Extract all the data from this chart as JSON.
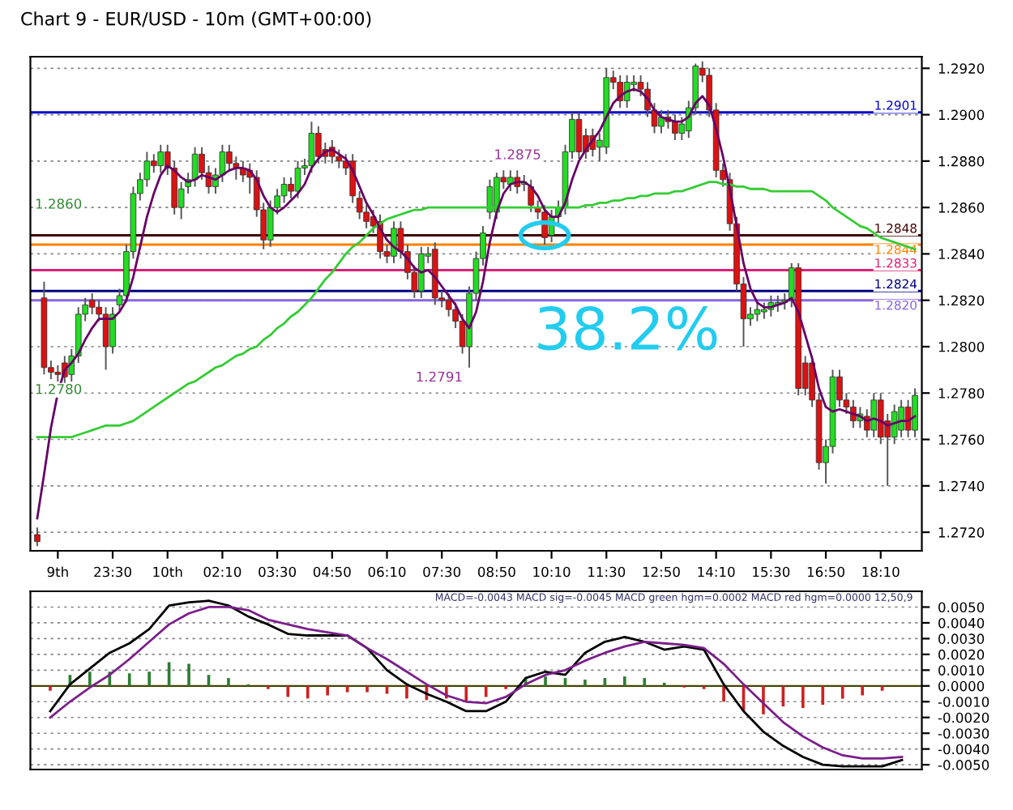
{
  "chart_data": [
    {
      "type": "candlestick",
      "title": "Chart 9 - EUR/USD - 10m (GMT+00:00)",
      "categories": [
        null,
        null,
        null,
        "9th",
        null,
        null,
        null,
        null,
        null,
        null,
        null,
        "23:30",
        null,
        null,
        null,
        null,
        null,
        null,
        null,
        "10th",
        null,
        null,
        null,
        null,
        null,
        null,
        null,
        "02:10",
        null,
        null,
        null,
        null,
        null,
        null,
        null,
        "03:30",
        null,
        null,
        null,
        null,
        null,
        null,
        null,
        "04:50",
        null,
        null,
        null,
        null,
        null,
        null,
        null,
        "06:10",
        null,
        null,
        null,
        null,
        null,
        null,
        null,
        "07:30",
        null,
        null,
        null,
        null,
        null,
        null,
        null,
        "08:50",
        null,
        null,
        null,
        null,
        null,
        null,
        null,
        "10:10",
        null,
        null,
        null,
        null,
        null,
        null,
        null,
        "11:30",
        null,
        null,
        null,
        null,
        null,
        null,
        null,
        "12:50",
        null,
        null,
        null,
        null,
        null,
        null,
        null,
        "14:10",
        null,
        null,
        null,
        null,
        null,
        null,
        null,
        "15:30",
        null,
        null,
        null,
        null,
        null,
        null,
        null,
        "16:50",
        null,
        null,
        null,
        null,
        null,
        null,
        null,
        "18:10",
        null,
        null,
        null,
        null,
        null
      ],
      "colors": [
        "#dd1111",
        "#dd1111",
        "#dd1111",
        "#dd1111",
        "#dd1111",
        "#22dd22",
        "#22dd22",
        "#22dd22",
        "#dd1111",
        "#dd1111",
        "#dd1111",
        "#22dd22",
        "#22dd22",
        "#22dd22",
        "#22dd22",
        "#22dd22",
        "#22dd22",
        "#dd1111",
        "#22dd22",
        "#dd1111",
        "#dd1111",
        "#22dd22",
        "#22dd22",
        "#22dd22",
        "#dd1111",
        "#dd1111",
        "#22dd22",
        "#22dd22",
        "#dd1111",
        "#dd1111",
        "#dd1111",
        "#dd1111",
        "#dd1111",
        "#dd1111",
        "#22dd22",
        "#22dd22",
        "#22dd22",
        "#dd1111",
        "#22dd22",
        "#22dd22",
        "#22dd22",
        "#dd1111",
        "#dd1111",
        "#dd1111",
        "#dd1111",
        "#dd1111",
        "#dd1111",
        "#dd1111",
        "#dd1111",
        "#dd1111",
        "#dd1111",
        "#dd1111",
        "#22dd22",
        "#dd1111",
        "#dd1111",
        "#dd1111",
        "#22dd22",
        "#22dd22",
        "#dd1111",
        "#dd1111",
        "#dd1111",
        "#dd1111",
        "#dd1111",
        "#22dd22",
        "#22dd22",
        "#22dd22",
        "#22dd22",
        "#22dd22",
        "#dd1111",
        "#22dd22",
        "#dd1111",
        "#22dd22",
        "#dd1111",
        "#dd1111",
        "#dd1111",
        "#22dd22",
        "#22dd22",
        "#22dd22",
        "#22dd22",
        "#dd1111",
        "#dd1111",
        "#dd1111",
        "#22dd22",
        "#22dd22",
        "#dd1111",
        "#dd1111",
        "#22dd22",
        "#22dd22",
        "#dd1111",
        "#dd1111",
        "#dd1111",
        "#22dd22",
        "#dd1111",
        "#dd1111",
        "#22dd22",
        "#22dd22",
        "#22dd22",
        "#dd1111",
        "#dd1111",
        "#dd1111",
        "#dd1111",
        "#dd1111",
        "#dd1111",
        "#dd1111",
        "#22dd22",
        "#22dd22",
        "#22dd22",
        "#22dd22",
        "#22dd22",
        "#22dd22",
        "#22dd22",
        "#dd1111",
        "#dd1111",
        "#dd1111",
        "#dd1111",
        "#22dd22",
        "#22dd22",
        "#dd1111",
        "#dd1111",
        "#dd1111",
        "#22dd22",
        "#dd1111",
        "#22dd22",
        "#dd1111",
        "#dd1111",
        "#22dd22",
        "#22dd22",
        "#dd1111",
        "#22dd22"
      ],
      "ohlc": [
        [
          1.2719,
          1.2722,
          1.2714,
          1.2716
        ],
        [
          1.2821,
          1.2828,
          1.2788,
          1.2791
        ],
        [
          1.2791,
          1.2794,
          1.2786,
          1.2789
        ],
        [
          1.2789,
          1.2792,
          1.2785,
          1.2788
        ],
        [
          1.2793,
          1.2796,
          1.2784,
          1.2787
        ],
        [
          1.2788,
          1.2799,
          1.2785,
          1.2796
        ],
        [
          1.2796,
          1.2817,
          1.2793,
          1.2814
        ],
        [
          1.2814,
          1.2821,
          1.2811,
          1.2818
        ],
        [
          1.282,
          1.2823,
          1.2814,
          1.2817
        ],
        [
          1.2817,
          1.282,
          1.2811,
          1.2814
        ],
        [
          1.2814,
          1.2817,
          1.279,
          1.28
        ],
        [
          1.28,
          1.2817,
          1.2797,
          1.2814
        ],
        [
          1.2818,
          1.2825,
          1.2815,
          1.2822
        ],
        [
          1.2822,
          1.2844,
          1.2819,
          1.2841
        ],
        [
          1.2841,
          1.2869,
          1.2838,
          1.2866
        ],
        [
          1.2866,
          1.2875,
          1.2863,
          1.2872
        ],
        [
          1.2872,
          1.2884,
          1.2869,
          1.288
        ],
        [
          1.288,
          1.2883,
          1.2875,
          1.2878
        ],
        [
          1.2878,
          1.2887,
          1.2875,
          1.2884
        ],
        [
          1.2884,
          1.2887,
          1.2874,
          1.2877
        ],
        [
          1.2877,
          1.288,
          1.2857,
          1.286
        ],
        [
          1.286,
          1.2871,
          1.2855,
          1.2868
        ],
        [
          1.2869,
          1.2875,
          1.2866,
          1.2872
        ],
        [
          1.2872,
          1.2886,
          1.2869,
          1.2883
        ],
        [
          1.2883,
          1.2886,
          1.2872,
          1.2875
        ],
        [
          1.2875,
          1.2878,
          1.2866,
          1.2869
        ],
        [
          1.2869,
          1.2877,
          1.2866,
          1.2874
        ],
        [
          1.2874,
          1.2887,
          1.2871,
          1.2884
        ],
        [
          1.2884,
          1.2887,
          1.2876,
          1.2879
        ],
        [
          1.2879,
          1.2882,
          1.2872,
          1.2877
        ],
        [
          1.2877,
          1.288,
          1.2871,
          1.2874
        ],
        [
          1.2876,
          1.2879,
          1.2866,
          1.2873
        ],
        [
          1.2873,
          1.2876,
          1.2856,
          1.2859
        ],
        [
          1.2859,
          1.2862,
          1.2842,
          1.2846
        ],
        [
          1.2846,
          1.2863,
          1.2843,
          1.286
        ],
        [
          1.286,
          1.2868,
          1.2857,
          1.2865
        ],
        [
          1.2865,
          1.2873,
          1.2862,
          1.287
        ],
        [
          1.287,
          1.2873,
          1.2864,
          1.2867
        ],
        [
          1.2867,
          1.288,
          1.2864,
          1.2877
        ],
        [
          1.2877,
          1.2881,
          1.2874,
          1.2878
        ],
        [
          1.2878,
          1.2897,
          1.2875,
          1.2892
        ],
        [
          1.2892,
          1.2895,
          1.2879,
          1.2882
        ],
        [
          1.2885,
          1.2888,
          1.2879,
          1.2882
        ],
        [
          1.2886,
          1.2889,
          1.2879,
          1.2882
        ],
        [
          1.2882,
          1.2885,
          1.2877,
          1.288
        ],
        [
          1.288,
          1.2883,
          1.2874,
          1.2877
        ],
        [
          1.288,
          1.2883,
          1.2862,
          1.2865
        ],
        [
          1.2864,
          1.2867,
          1.2855,
          1.2858
        ],
        [
          1.2858,
          1.2861,
          1.2851,
          1.2854
        ],
        [
          1.2856,
          1.2859,
          1.2849,
          1.2852
        ],
        [
          1.2854,
          1.2857,
          1.2838,
          1.2841
        ],
        [
          1.2841,
          1.2844,
          1.2836,
          1.2839
        ],
        [
          1.2839,
          1.2854,
          1.2836,
          1.2851
        ],
        [
          1.2851,
          1.2854,
          1.2838,
          1.2841
        ],
        [
          1.2841,
          1.2844,
          1.2829,
          1.2832
        ],
        [
          1.2832,
          1.2835,
          1.2821,
          1.2824
        ],
        [
          1.2824,
          1.2843,
          1.2821,
          1.284
        ],
        [
          1.2839,
          1.2843,
          1.2836,
          1.284
        ],
        [
          1.2842,
          1.2845,
          1.2818,
          1.2821
        ],
        [
          1.2821,
          1.2824,
          1.2817,
          1.282
        ],
        [
          1.282,
          1.2823,
          1.2813,
          1.2816
        ],
        [
          1.2816,
          1.2819,
          1.2808,
          1.2811
        ],
        [
          1.2811,
          1.2814,
          1.2797,
          1.28
        ],
        [
          1.28,
          1.2826,
          1.2791,
          1.2823
        ],
        [
          1.2823,
          1.2841,
          1.282,
          1.2838
        ],
        [
          1.2838,
          1.2852,
          1.2835,
          1.2849
        ],
        [
          1.2858,
          1.2872,
          1.2855,
          1.2869
        ],
        [
          1.2858,
          1.2875,
          1.2855,
          1.2873
        ],
        [
          1.2873,
          1.2876,
          1.2868,
          1.2871
        ],
        [
          1.287,
          1.2876,
          1.2867,
          1.2873
        ],
        [
          1.2873,
          1.2876,
          1.2866,
          1.2869
        ],
        [
          1.287,
          1.2874,
          1.2867,
          1.2871
        ],
        [
          1.2869,
          1.2872,
          1.2858,
          1.2861
        ],
        [
          1.286,
          1.2863,
          1.2855,
          1.2858
        ],
        [
          1.2858,
          1.2861,
          1.2844,
          1.2847
        ],
        [
          1.2848,
          1.2859,
          1.2845,
          1.2856
        ],
        [
          1.2856,
          1.2863,
          1.2853,
          1.286
        ],
        [
          1.286,
          1.2887,
          1.2857,
          1.2884
        ],
        [
          1.2884,
          1.2901,
          1.2881,
          1.2898
        ],
        [
          1.2898,
          1.2901,
          1.2881,
          1.2884
        ],
        [
          1.2891,
          1.2894,
          1.2881,
          1.2884
        ],
        [
          1.2891,
          1.2894,
          1.2882,
          1.2885
        ],
        [
          1.2886,
          1.2892,
          1.288,
          1.2889
        ],
        [
          1.2886,
          1.292,
          1.2883,
          1.2916
        ],
        [
          1.2916,
          1.2919,
          1.2911,
          1.2914
        ],
        [
          1.2914,
          1.2917,
          1.2903,
          1.2906
        ],
        [
          1.2906,
          1.2917,
          1.2903,
          1.2914
        ],
        [
          1.2913,
          1.2917,
          1.291,
          1.2914
        ],
        [
          1.2914,
          1.2917,
          1.2908,
          1.2911
        ],
        [
          1.2911,
          1.2914,
          1.2899,
          1.2902
        ],
        [
          1.2902,
          1.2905,
          1.2892,
          1.2895
        ],
        [
          1.2895,
          1.2902,
          1.2892,
          1.2899
        ],
        [
          1.2899,
          1.2902,
          1.2894,
          1.2897
        ],
        [
          1.2897,
          1.29,
          1.2889,
          1.2892
        ],
        [
          1.2892,
          1.2899,
          1.2889,
          1.2896
        ],
        [
          1.2893,
          1.2906,
          1.289,
          1.2903
        ],
        [
          1.2903,
          1.2922,
          1.29,
          1.2921
        ],
        [
          1.292,
          1.2923,
          1.2914,
          1.2917
        ],
        [
          1.2917,
          1.292,
          1.2899,
          1.2902
        ],
        [
          1.2902,
          1.2905,
          1.2873,
          1.2876
        ],
        [
          1.2876,
          1.2879,
          1.2869,
          1.2872
        ],
        [
          1.2872,
          1.2875,
          1.285,
          1.2853
        ],
        [
          1.2853,
          1.2856,
          1.2824,
          1.2827
        ],
        [
          1.2827,
          1.283,
          1.28,
          1.2812
        ],
        [
          1.2812,
          1.2817,
          1.2809,
          1.2814
        ],
        [
          1.2814,
          1.2819,
          1.2811,
          1.2816
        ],
        [
          1.2815,
          1.2819,
          1.2812,
          1.2816
        ],
        [
          1.2816,
          1.2822,
          1.2813,
          1.2819
        ],
        [
          1.2818,
          1.2822,
          1.2815,
          1.2819
        ],
        [
          1.2819,
          1.2823,
          1.2816,
          1.282
        ],
        [
          1.282,
          1.2836,
          1.2817,
          1.2834
        ],
        [
          1.2834,
          1.2836,
          1.2779,
          1.2782
        ],
        [
          1.2793,
          1.2796,
          1.2779,
          1.2782
        ],
        [
          1.2793,
          1.2796,
          1.2774,
          1.2777
        ],
        [
          1.2777,
          1.278,
          1.2747,
          1.275
        ],
        [
          1.275,
          1.276,
          1.2741,
          1.2757
        ],
        [
          1.2757,
          1.279,
          1.2754,
          1.2787
        ],
        [
          1.2787,
          1.279,
          1.2774,
          1.2777
        ],
        [
          1.2777,
          1.278,
          1.2771,
          1.2774
        ],
        [
          1.2774,
          1.2777,
          1.2765,
          1.2768
        ],
        [
          1.2768,
          1.2774,
          1.2765,
          1.2771
        ],
        [
          1.277,
          1.2773,
          1.2761,
          1.2764
        ],
        [
          1.2764,
          1.278,
          1.2761,
          1.2777
        ],
        [
          1.2777,
          1.278,
          1.2758,
          1.2761
        ],
        [
          1.2768,
          1.2771,
          1.274,
          1.2761
        ],
        [
          1.2761,
          1.2775,
          1.2758,
          1.2772
        ],
        [
          1.2764,
          1.2777,
          1.2761,
          1.2774
        ],
        [
          1.2774,
          1.2777,
          1.2761,
          1.2764
        ],
        [
          1.2764,
          1.2782,
          1.2761,
          1.2779
        ]
      ],
      "series": [
        {
          "type": "line",
          "color": "#33cc33",
          "values": [
            1.2761,
            1.2761,
            1.2761,
            1.2761,
            1.2761,
            1.2761,
            1.2762,
            1.2763,
            1.2764,
            1.2765,
            1.2766,
            1.2766,
            1.2766,
            1.2767,
            1.2768,
            1.277,
            1.2772,
            1.2774,
            1.2776,
            1.2778,
            1.278,
            1.2782,
            1.2784,
            1.2785,
            1.2787,
            1.2789,
            1.2791,
            1.2792,
            1.2794,
            1.2796,
            1.2797,
            1.2799,
            1.28,
            1.2803,
            1.2805,
            1.2808,
            1.281,
            1.2813,
            1.2815,
            1.2818,
            1.2821,
            1.2825,
            1.2829,
            1.2832,
            1.2836,
            1.284,
            1.2843,
            1.2845,
            1.2848,
            1.2851,
            1.2853,
            1.2855,
            1.2856,
            1.2857,
            1.2858,
            1.2859,
            1.2859,
            1.286,
            1.286,
            1.286,
            1.286,
            1.286,
            1.286,
            1.286,
            1.286,
            1.286,
            1.286,
            1.286,
            1.286,
            1.286,
            1.286,
            1.286,
            1.286,
            1.286,
            1.286,
            1.286,
            1.286,
            1.286,
            1.286,
            1.286,
            1.2861,
            1.2861,
            1.2862,
            1.2862,
            1.2863,
            1.2863,
            1.2864,
            1.2864,
            1.2865,
            1.2865,
            1.2866,
            1.2866,
            1.2866,
            1.2867,
            1.2867,
            1.2868,
            1.2869,
            1.287,
            1.2871,
            1.2871,
            1.287,
            1.287,
            1.2869,
            1.2869,
            1.2868,
            1.2868,
            1.2868,
            1.2867,
            1.2867,
            1.2867,
            1.2867,
            1.2867,
            1.2867,
            1.2867,
            1.2865,
            1.2863,
            1.286,
            1.2858,
            1.2856,
            1.2854,
            1.2852,
            1.2851,
            1.2849,
            1.2847,
            1.2846,
            1.2845,
            1.2844,
            1.2843,
            1.2842
          ]
        },
        {
          "type": "line",
          "color": "#660066",
          "values": [
            1.2726,
            1.2745,
            1.2765,
            1.278,
            1.279,
            1.2793,
            1.2797,
            1.2803,
            1.2808,
            1.2812,
            1.2812,
            1.2812,
            1.2815,
            1.282,
            1.283,
            1.2843,
            1.2856,
            1.2866,
            1.2874,
            1.2878,
            1.2876,
            1.2873,
            1.2871,
            1.2872,
            1.2874,
            1.2873,
            1.2872,
            1.2874,
            1.2876,
            1.2877,
            1.2877,
            1.2876,
            1.2872,
            1.2865,
            1.286,
            1.2858,
            1.286,
            1.2863,
            1.2866,
            1.287,
            1.2877,
            1.2881,
            1.2884,
            1.2885,
            1.2883,
            1.2881,
            1.2876,
            1.2869,
            1.2862,
            1.2857,
            1.2851,
            1.2846,
            1.2843,
            1.2841,
            1.2838,
            1.2834,
            1.2832,
            1.2833,
            1.283,
            1.2826,
            1.2822,
            1.2818,
            1.2812,
            1.2808,
            1.2815,
            1.2828,
            1.2845,
            1.2858,
            1.2866,
            1.287,
            1.2871,
            1.2871,
            1.2869,
            1.2865,
            1.2859,
            1.2856,
            1.2856,
            1.2862,
            1.2872,
            1.288,
            1.2885,
            1.2889,
            1.2893,
            1.2899,
            1.2905,
            1.2908,
            1.291,
            1.2911,
            1.291,
            1.2907,
            1.2902,
            1.2899,
            1.2898,
            1.2897,
            1.2897,
            1.2899,
            1.2905,
            1.2908,
            1.2904,
            1.2894,
            1.2882,
            1.2868,
            1.2852,
            1.2836,
            1.2825,
            1.2819,
            1.2817,
            1.2817,
            1.2818,
            1.2819,
            1.2821,
            1.2815,
            1.2805,
            1.2795,
            1.2782,
            1.2774,
            1.2772,
            1.2773,
            1.2772,
            1.2771,
            1.277,
            1.2768,
            1.2769,
            1.2768,
            1.2766,
            1.2767,
            1.2768,
            1.2768,
            1.277
          ]
        }
      ],
      "ylim": [
        1.2712,
        1.2925
      ],
      "yticks": [
        {
          "value": 1.272,
          "label": "1.2720"
        },
        {
          "value": 1.274,
          "label": "1.2740"
        },
        {
          "value": 1.276,
          "label": "1.2760"
        },
        {
          "value": 1.278,
          "label": "1.2780"
        },
        {
          "value": 1.28,
          "label": "1.2800"
        },
        {
          "value": 1.282,
          "label": "1.2820"
        },
        {
          "value": 1.284,
          "label": "1.2840"
        },
        {
          "value": 1.286,
          "label": "1.2860"
        },
        {
          "value": 1.288,
          "label": "1.2880"
        },
        {
          "value": 1.29,
          "label": "1.2900"
        },
        {
          "value": 1.292,
          "label": "1.2920"
        }
      ],
      "grid": "y",
      "ref_lines": [
        {
          "axis": "y",
          "value": 1.2901,
          "label": "1.2901",
          "color": "#0000cc"
        },
        {
          "axis": "y",
          "value": 1.2848,
          "label": "1.2848",
          "color": "#400000"
        },
        {
          "axis": "y",
          "value": 1.2844,
          "label": "1.2844",
          "color": "#ff8000"
        },
        {
          "axis": "y",
          "value": 1.2833,
          "label": "1.2833",
          "color": "#dd2277"
        },
        {
          "axis": "y",
          "value": 1.2824,
          "label": "1.2824",
          "color": "#000080"
        },
        {
          "axis": "y",
          "value": 1.282,
          "label": "1.2820",
          "color": "#8866dd"
        }
      ],
      "annotations": [
        "1.2791",
        "1.2875",
        "1.2860",
        "1.2780",
        "38.2%"
      ]
    },
    {
      "type": "bar",
      "title": "MACD=-0.0043 MACD sig=-0.0045 MACD green hgm=0.0002 MACD red hgm=0.0000 12,50,9",
      "categories": [
        null,
        null,
        null,
        null,
        null,
        null,
        null,
        null,
        null,
        null,
        null,
        null,
        null,
        null,
        null,
        null,
        null,
        null,
        null,
        null,
        null,
        null,
        null,
        null,
        null,
        null,
        null,
        null,
        null,
        null,
        null,
        null,
        null,
        null,
        null,
        null,
        null,
        null,
        null,
        null,
        null,
        null,
        null,
        null
      ],
      "series": [
        {
          "type": "bar",
          "colors": [
            "#cc2222",
            "#2e7d32",
            "#2e7d32",
            "#2e7d32",
            "#2e7d32",
            "#2e7d32",
            "#2e7d32",
            "#2e7d32",
            "#2e7d32",
            "#2e7d32",
            "#2e7d32",
            "#cc2222",
            "#cc2222",
            "#cc2222",
            "#cc2222",
            "#cc2222",
            "#cc2222",
            "#cc2222",
            "#cc2222",
            "#cc2222",
            "#cc2222",
            "#cc2222",
            "#cc2222",
            "#cc2222",
            "#2e7d32",
            "#2e7d32",
            "#2e7d32",
            "#2e7d32",
            "#2e7d32",
            "#2e7d32",
            "#2e7d32",
            "#2e7d32",
            "#cc2222",
            "#cc2222",
            "#cc2222",
            "#cc2222",
            "#cc2222",
            "#cc2222",
            "#cc2222",
            "#cc2222",
            "#cc2222",
            "#cc2222",
            "#cc2222",
            "#cc2222"
          ],
          "values": [
            -0.0003,
            0.0007,
            0.0009,
            0.0009,
            0.0008,
            0.0009,
            0.0015,
            0.0014,
            0.0007,
            0.0005,
            0.0001,
            -0.0002,
            -0.0007,
            -0.0008,
            -0.0006,
            -0.0004,
            -0.0004,
            -0.0005,
            -0.0008,
            -0.0009,
            -0.0008,
            -0.001,
            -0.0007,
            -0.0002,
            0.0005,
            0.0006,
            0.0005,
            0.0004,
            0.0005,
            0.0006,
            0.0005,
            0.0002,
            -0.0001,
            -0.0002,
            -0.001,
            -0.0016,
            -0.0018,
            -0.0013,
            -0.0014,
            -0.0012,
            -0.0008,
            -0.0006,
            -0.0003,
            0.0
          ]
        },
        {
          "type": "line",
          "color": "#000000",
          "values": [
            -0.0016,
            0.0001,
            0.0011,
            0.0021,
            0.0027,
            0.0036,
            0.0051,
            0.0053,
            0.0054,
            0.0051,
            0.0044,
            0.0039,
            0.0033,
            0.0032,
            0.0032,
            0.0032,
            0.0024,
            0.001,
            0.0001,
            -0.0005,
            -0.001,
            -0.0016,
            -0.0016,
            -0.001,
            0.0005,
            0.0009,
            0.0007,
            0.0021,
            0.0028,
            0.0031,
            0.0028,
            0.0023,
            0.0025,
            0.0023,
            0.0001,
            -0.0016,
            -0.0029,
            -0.0038,
            -0.0045,
            -0.005,
            -0.0051,
            -0.0051,
            -0.0051,
            -0.0047
          ]
        },
        {
          "type": "line",
          "color": "#7a1f8a",
          "values": [
            -0.002,
            -0.001,
            -0.0001,
            0.0007,
            0.0017,
            0.0028,
            0.0039,
            0.0046,
            0.005,
            0.005,
            0.0048,
            0.0042,
            0.0039,
            0.0036,
            0.0034,
            0.0032,
            0.0024,
            0.0017,
            0.0009,
            0.0001,
            -0.0006,
            -0.001,
            -0.0011,
            -0.0007,
            0.0001,
            0.0007,
            0.001,
            0.0016,
            0.0021,
            0.0025,
            0.0028,
            0.0027,
            0.0026,
            0.0024,
            0.0014,
            0.0001,
            -0.0011,
            -0.0023,
            -0.0032,
            -0.0039,
            -0.0044,
            -0.0046,
            -0.0046,
            -0.0045
          ]
        }
      ],
      "ylim": [
        -0.0053,
        0.006
      ],
      "yticks": [
        {
          "value": -0.005,
          "label": "-0.0050"
        },
        {
          "value": -0.004,
          "label": "-0.0040"
        },
        {
          "value": -0.003,
          "label": "-0.0030"
        },
        {
          "value": -0.002,
          "label": "-0.0020"
        },
        {
          "value": -0.001,
          "label": "-0.0010"
        },
        {
          "value": 0,
          "label": "0.0000"
        },
        {
          "value": 0.001,
          "label": "0.0010"
        },
        {
          "value": 0.002,
          "label": "0.0020"
        },
        {
          "value": 0.003,
          "label": "0.0030"
        },
        {
          "value": 0.004,
          "label": "0.0040"
        },
        {
          "value": 0.005,
          "label": "0.0050"
        }
      ],
      "grid": "y",
      "tick_labels": "y"
    }
  ]
}
